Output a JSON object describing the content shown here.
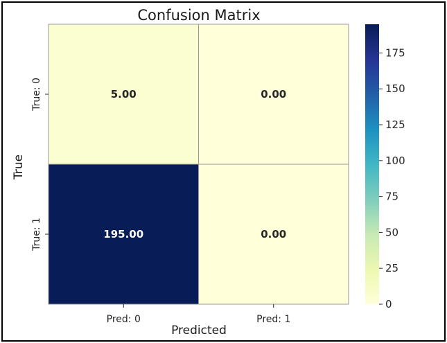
{
  "chart_data": {
    "type": "heatmap",
    "title": "Confusion Matrix",
    "xlabel": "Predicted",
    "ylabel": "True",
    "x_categories": [
      "Pred: 0",
      "Pred: 1"
    ],
    "y_categories": [
      "True: 0",
      "True: 1"
    ],
    "values": [
      [
        5.0,
        0.0
      ],
      [
        195.0,
        0.0
      ]
    ],
    "cell_labels": [
      [
        "5.00",
        "0.00"
      ],
      [
        "195.00",
        "0.00"
      ]
    ],
    "colormap": "YlGnBu",
    "colorbar": {
      "range": [
        0,
        195
      ],
      "ticks": [
        0,
        25,
        50,
        75,
        100,
        125,
        150,
        175
      ],
      "tick_labels": [
        "0",
        "25",
        "50",
        "75",
        "100",
        "125",
        "150",
        "175"
      ]
    },
    "grid": false,
    "cell_border_color": "#999999"
  }
}
